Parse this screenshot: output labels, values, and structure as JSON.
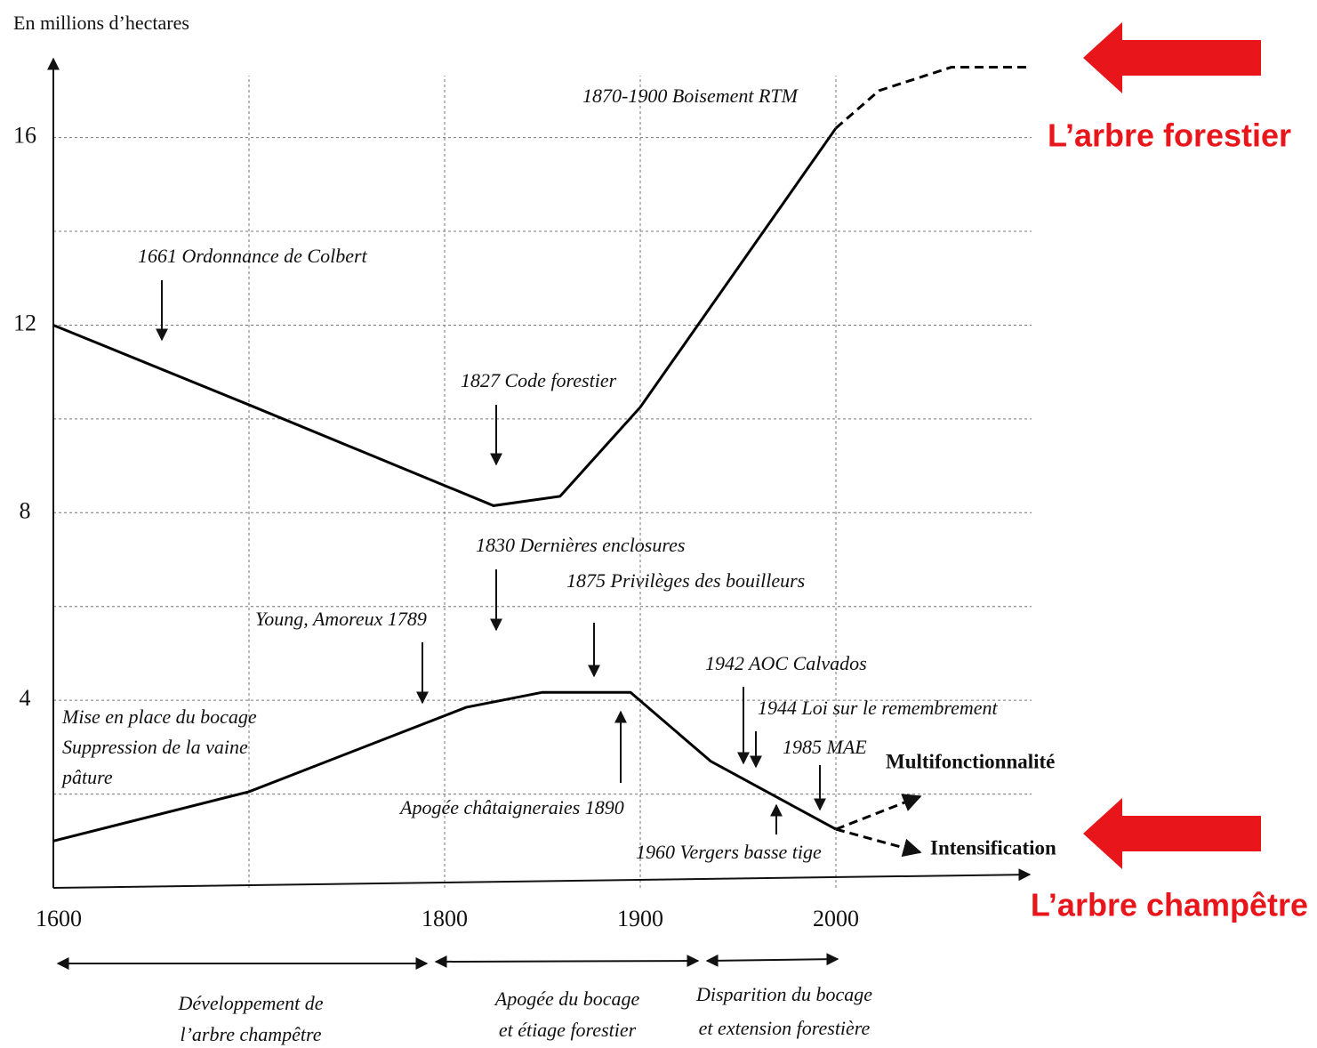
{
  "chart_data": {
    "type": "line",
    "y_label": "En millions d’hectares",
    "xlim": [
      1600,
      2100
    ],
    "ylim": [
      0,
      17.7
    ],
    "xticks": [
      1600,
      1800,
      1900,
      2000
    ],
    "yticks": [
      4,
      8,
      12,
      16
    ],
    "x_grid": [
      1700,
      1800,
      1900,
      2000
    ],
    "y_grid": [
      2,
      4,
      6,
      8,
      10,
      12,
      14,
      16
    ],
    "series": [
      {
        "name": "L’arbre forestier",
        "color": "#000000",
        "dashed": false,
        "x": [
          1600,
          1700,
          1825,
          1859,
          1900,
          2000
        ],
        "values": [
          12,
          10.3,
          8.15,
          8.35,
          10.25,
          16.2
        ]
      },
      {
        "color": "#000000",
        "dashed": true,
        "x": [
          2000,
          2022,
          2059,
          2100
        ],
        "values": [
          16.2,
          17,
          17.5,
          17.5
        ]
      },
      {
        "name": "L’arbre champêtre",
        "color": "#000000",
        "dashed": false,
        "x": [
          1600,
          1700,
          1811,
          1850,
          1895,
          1936,
          2000
        ],
        "values": [
          1,
          2.05,
          3.85,
          4.17,
          4.17,
          2.7,
          1.25
        ]
      },
      {
        "name": "Multifonctionnalité",
        "color": "#000000",
        "dashed": true,
        "x": [
          2000,
          2043
        ],
        "values": [
          1.25,
          1.95
        ]
      },
      {
        "name": "Intensification",
        "color": "#000000",
        "dashed": true,
        "x": [
          2000,
          2043
        ],
        "values": [
          1.25,
          0.76
        ]
      }
    ],
    "annotations": [
      "1661 Ordonnance de Colbert",
      "1827 Code forestier",
      "1870-1900 Boisement RTM",
      "1830 Dernières enclosures",
      "1875 Privilèges des bouilleurs",
      "Young, Amoreux 1789",
      "1942 AOC Calvados",
      "1944 Loi sur le remembrement",
      "1985 MAE",
      "Mise en place du bocage",
      "Suppression de la vaine",
      "pâture",
      "Apogée châtaigneraies 1890",
      "1960 Vergers basse tige"
    ],
    "periods": [
      [
        "Développement de",
        "l’arbre champêtre"
      ],
      [
        "Apogée du bocage",
        "et étiage forestier"
      ],
      [
        "Disparition du bocage",
        "et extension forestière"
      ]
    ]
  }
}
